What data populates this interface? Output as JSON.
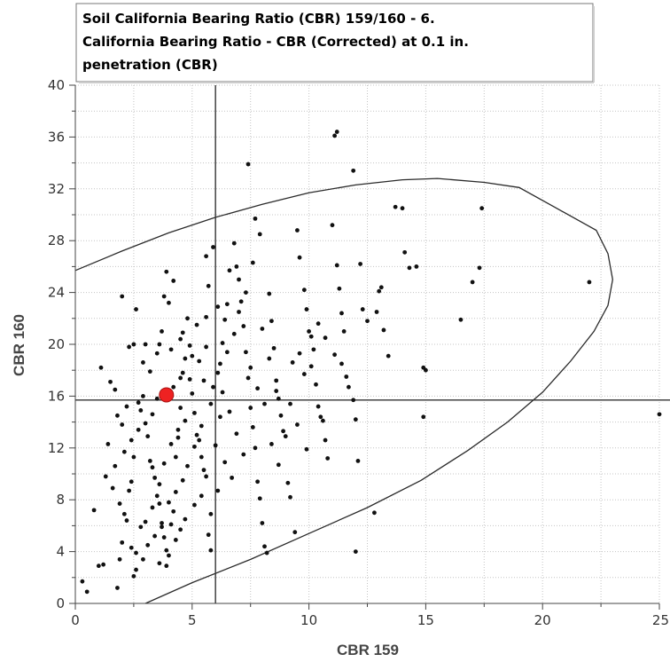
{
  "chart_data": {
    "type": "scatter",
    "title_lines": [
      "Soil California Bearing Ratio (CBR) 159/160 - 6.",
      "California Bearing Ratio - CBR (Corrected) at 0.1 in.",
      "penetration (CBR)"
    ],
    "xlabel": "CBR 159",
    "ylabel": "CBR 160",
    "xlim": [
      0,
      25
    ],
    "ylim": [
      0,
      40
    ],
    "xticks": [
      "0",
      "5",
      "10",
      "15",
      "20",
      "25"
    ],
    "yticks": [
      "0",
      "4",
      "8",
      "12",
      "16",
      "20",
      "24",
      "28",
      "32",
      "36",
      "40"
    ],
    "grid": true,
    "reference_lines": {
      "x": 6.0,
      "y": 15.7
    },
    "highlight_point": {
      "x": 3.9,
      "y": 16.1,
      "color": "#ee2222"
    },
    "ellipse": [
      [
        0.0,
        25.7
      ],
      [
        2.0,
        27.2
      ],
      [
        4.0,
        28.6
      ],
      [
        6.0,
        29.8
      ],
      [
        8.0,
        30.8
      ],
      [
        10.0,
        31.7
      ],
      [
        12.0,
        32.3
      ],
      [
        14.0,
        32.7
      ],
      [
        15.5,
        32.8
      ],
      [
        17.5,
        32.5
      ],
      [
        19.0,
        32.1
      ],
      [
        20.5,
        30.6
      ],
      [
        22.3,
        28.8
      ],
      [
        22.8,
        27.0
      ],
      [
        23.0,
        25.0
      ],
      [
        22.8,
        23.0
      ],
      [
        22.2,
        21.0
      ],
      [
        21.2,
        18.7
      ],
      [
        20.0,
        16.3
      ],
      [
        18.5,
        14.0
      ],
      [
        16.8,
        11.8
      ],
      [
        14.8,
        9.5
      ],
      [
        12.5,
        7.4
      ],
      [
        10.0,
        5.4
      ],
      [
        7.5,
        3.4
      ],
      [
        5.0,
        1.6
      ],
      [
        3.0,
        0.0
      ]
    ],
    "points": [
      [
        0.3,
        1.7
      ],
      [
        0.5,
        0.9
      ],
      [
        0.8,
        7.2
      ],
      [
        1.0,
        2.9
      ],
      [
        1.2,
        3.0
      ],
      [
        1.1,
        18.2
      ],
      [
        1.5,
        17.1
      ],
      [
        1.7,
        16.5
      ],
      [
        1.4,
        12.3
      ],
      [
        1.8,
        1.2
      ],
      [
        2.0,
        4.7
      ],
      [
        2.1,
        6.9
      ],
      [
        2.3,
        8.7
      ],
      [
        2.4,
        9.4
      ],
      [
        2.5,
        2.1
      ],
      [
        2.6,
        3.9
      ],
      [
        2.0,
        23.7
      ],
      [
        2.6,
        22.7
      ],
      [
        2.3,
        19.8
      ],
      [
        2.5,
        20.0
      ],
      [
        2.7,
        15.5
      ],
      [
        2.8,
        14.9
      ],
      [
        2.9,
        16.0
      ],
      [
        3.0,
        13.9
      ],
      [
        3.1,
        12.9
      ],
      [
        3.2,
        11.0
      ],
      [
        3.3,
        10.5
      ],
      [
        3.4,
        9.7
      ],
      [
        3.5,
        8.3
      ],
      [
        3.6,
        7.7
      ],
      [
        3.7,
        6.2
      ],
      [
        3.8,
        5.1
      ],
      [
        3.9,
        4.1
      ],
      [
        4.0,
        3.7
      ],
      [
        4.1,
        6.1
      ],
      [
        4.2,
        7.1
      ],
      [
        4.3,
        11.3
      ],
      [
        4.4,
        12.8
      ],
      [
        4.5,
        15.1
      ],
      [
        4.6,
        17.8
      ],
      [
        4.7,
        18.9
      ],
      [
        3.6,
        20.0
      ],
      [
        3.7,
        21.0
      ],
      [
        3.8,
        23.7
      ],
      [
        3.9,
        25.6
      ],
      [
        4.0,
        23.2
      ],
      [
        4.2,
        24.9
      ],
      [
        4.5,
        20.4
      ],
      [
        4.8,
        22.0
      ],
      [
        4.9,
        19.9
      ],
      [
        5.0,
        16.2
      ],
      [
        5.1,
        14.7
      ],
      [
        5.2,
        13.0
      ],
      [
        5.3,
        12.6
      ],
      [
        5.4,
        11.3
      ],
      [
        5.5,
        10.3
      ],
      [
        5.6,
        9.8
      ],
      [
        5.7,
        5.3
      ],
      [
        5.8,
        4.1
      ],
      [
        5.9,
        16.7
      ],
      [
        5.6,
        22.1
      ],
      [
        5.7,
        24.5
      ],
      [
        5.6,
        26.8
      ],
      [
        5.9,
        27.5
      ],
      [
        6.1,
        17.8
      ],
      [
        6.2,
        18.5
      ],
      [
        6.3,
        20.1
      ],
      [
        6.4,
        21.9
      ],
      [
        6.5,
        23.1
      ],
      [
        6.6,
        25.7
      ],
      [
        6.8,
        27.8
      ],
      [
        6.9,
        26.0
      ],
      [
        7.0,
        25.0
      ],
      [
        7.1,
        23.3
      ],
      [
        7.2,
        21.4
      ],
      [
        7.3,
        19.4
      ],
      [
        7.4,
        17.4
      ],
      [
        7.5,
        15.1
      ],
      [
        7.6,
        13.6
      ],
      [
        7.7,
        12.0
      ],
      [
        7.8,
        9.4
      ],
      [
        7.9,
        8.1
      ],
      [
        8.0,
        6.2
      ],
      [
        8.1,
        4.4
      ],
      [
        8.2,
        3.9
      ],
      [
        7.4,
        33.9
      ],
      [
        7.7,
        29.7
      ],
      [
        7.9,
        28.5
      ],
      [
        8.3,
        23.9
      ],
      [
        8.4,
        21.8
      ],
      [
        8.5,
        19.7
      ],
      [
        8.6,
        17.2
      ],
      [
        8.7,
        15.8
      ],
      [
        8.8,
        14.5
      ],
      [
        8.9,
        13.3
      ],
      [
        9.0,
        12.9
      ],
      [
        9.1,
        9.3
      ],
      [
        9.2,
        8.2
      ],
      [
        9.4,
        5.5
      ],
      [
        9.5,
        28.8
      ],
      [
        9.6,
        26.7
      ],
      [
        9.8,
        24.2
      ],
      [
        9.9,
        22.7
      ],
      [
        10.0,
        21.0
      ],
      [
        10.1,
        20.6
      ],
      [
        10.2,
        19.6
      ],
      [
        10.3,
        16.9
      ],
      [
        10.4,
        15.2
      ],
      [
        10.5,
        14.4
      ],
      [
        10.6,
        14.1
      ],
      [
        10.7,
        12.6
      ],
      [
        10.8,
        11.2
      ],
      [
        11.0,
        29.2
      ],
      [
        11.2,
        26.1
      ],
      [
        11.3,
        24.3
      ],
      [
        11.4,
        22.4
      ],
      [
        11.5,
        21.0
      ],
      [
        11.6,
        17.5
      ],
      [
        11.7,
        16.7
      ],
      [
        11.9,
        15.7
      ],
      [
        12.0,
        14.2
      ],
      [
        12.1,
        11.0
      ],
      [
        12.2,
        26.2
      ],
      [
        12.3,
        22.7
      ],
      [
        12.5,
        21.8
      ],
      [
        12.9,
        22.5
      ],
      [
        13.0,
        24.1
      ],
      [
        13.1,
        24.4
      ],
      [
        13.2,
        21.1
      ],
      [
        13.4,
        19.1
      ],
      [
        11.1,
        36.1
      ],
      [
        11.2,
        36.4
      ],
      [
        11.9,
        33.4
      ],
      [
        13.7,
        30.6
      ],
      [
        14.0,
        30.5
      ],
      [
        14.1,
        27.1
      ],
      [
        14.3,
        25.9
      ],
      [
        14.6,
        26.0
      ],
      [
        14.9,
        18.2
      ],
      [
        15.0,
        18.0
      ],
      [
        14.9,
        14.4
      ],
      [
        16.5,
        21.9
      ],
      [
        17.0,
        24.8
      ],
      [
        17.3,
        25.9
      ],
      [
        17.4,
        30.5
      ],
      [
        22.0,
        24.8
      ],
      [
        25.0,
        14.6
      ],
      [
        12.8,
        7.0
      ],
      [
        12.0,
        4.0
      ],
      [
        6.3,
        16.3
      ],
      [
        6.6,
        14.8
      ],
      [
        6.9,
        13.1
      ],
      [
        7.2,
        11.5
      ],
      [
        6.0,
        12.2
      ],
      [
        6.4,
        10.9
      ],
      [
        6.7,
        9.7
      ],
      [
        5.3,
        18.7
      ],
      [
        5.0,
        19.1
      ],
      [
        4.9,
        17.3
      ],
      [
        4.7,
        14.1
      ],
      [
        4.4,
        13.4
      ],
      [
        4.1,
        12.3
      ],
      [
        3.8,
        10.8
      ],
      [
        3.6,
        9.2
      ],
      [
        3.3,
        7.4
      ],
      [
        3.0,
        6.3
      ],
      [
        2.8,
        5.9
      ],
      [
        2.2,
        6.4
      ],
      [
        1.9,
        7.7
      ],
      [
        1.6,
        8.9
      ],
      [
        1.3,
        9.8
      ],
      [
        1.7,
        10.6
      ],
      [
        2.1,
        11.7
      ],
      [
        2.4,
        12.6
      ],
      [
        2.7,
        13.4
      ],
      [
        3.3,
        14.6
      ],
      [
        3.5,
        15.8
      ],
      [
        4.2,
        16.7
      ],
      [
        4.5,
        17.4
      ],
      [
        5.5,
        17.2
      ],
      [
        5.8,
        15.4
      ],
      [
        6.2,
        14.4
      ],
      [
        5.4,
        13.7
      ],
      [
        5.1,
        12.1
      ],
      [
        4.8,
        10.6
      ],
      [
        4.6,
        9.5
      ],
      [
        4.3,
        8.6
      ],
      [
        4.0,
        7.8
      ],
      [
        3.7,
        5.9
      ],
      [
        3.4,
        5.2
      ],
      [
        3.1,
        4.5
      ],
      [
        2.9,
        3.4
      ],
      [
        2.6,
        2.6
      ],
      [
        3.9,
        2.9
      ],
      [
        4.3,
        4.9
      ],
      [
        4.7,
        6.5
      ],
      [
        5.1,
        7.6
      ],
      [
        5.4,
        8.3
      ],
      [
        6.5,
        19.4
      ],
      [
        6.8,
        20.8
      ],
      [
        7.0,
        22.5
      ],
      [
        7.3,
        24.0
      ],
      [
        7.6,
        26.3
      ],
      [
        8.0,
        21.2
      ],
      [
        8.3,
        18.9
      ],
      [
        8.6,
        16.4
      ],
      [
        8.1,
        15.4
      ],
      [
        7.8,
        16.6
      ],
      [
        7.5,
        18.2
      ],
      [
        9.3,
        18.6
      ],
      [
        9.6,
        19.3
      ],
      [
        9.8,
        17.7
      ],
      [
        10.1,
        18.3
      ],
      [
        10.4,
        21.6
      ],
      [
        10.7,
        20.5
      ],
      [
        11.1,
        19.2
      ],
      [
        11.4,
        18.5
      ],
      [
        9.2,
        15.4
      ],
      [
        9.5,
        13.8
      ],
      [
        9.9,
        11.9
      ],
      [
        8.4,
        12.3
      ],
      [
        8.7,
        10.7
      ],
      [
        3.2,
        17.9
      ],
      [
        2.9,
        18.6
      ],
      [
        3.5,
        19.3
      ],
      [
        4.1,
        19.6
      ],
      [
        4.6,
        20.9
      ],
      [
        5.2,
        21.5
      ],
      [
        5.6,
        19.8
      ],
      [
        6.1,
        22.9
      ],
      [
        3.0,
        20.0
      ],
      [
        2.2,
        15.2
      ],
      [
        2.0,
        13.8
      ],
      [
        1.8,
        14.5
      ],
      [
        2.5,
        11.3
      ],
      [
        1.9,
        3.4
      ],
      [
        2.4,
        4.3
      ],
      [
        3.6,
        3.1
      ],
      [
        4.5,
        5.7
      ],
      [
        5.8,
        6.9
      ],
      [
        6.1,
        8.7
      ]
    ]
  }
}
